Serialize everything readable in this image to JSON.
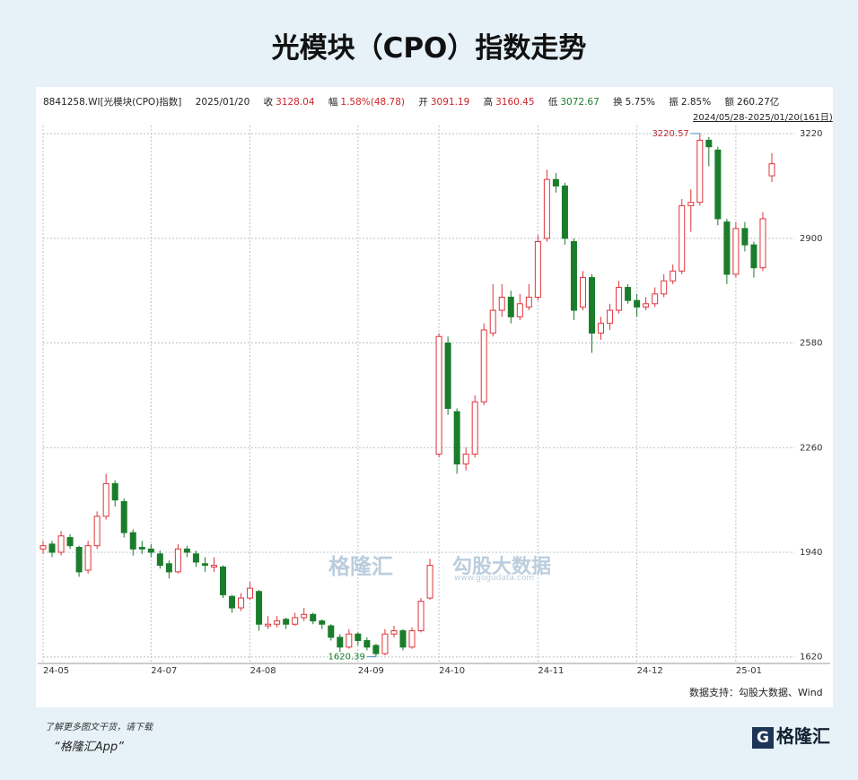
{
  "header": {
    "title": "光模块（CPO）指数走势"
  },
  "info": {
    "code": "8841258.WI[光模块(CPO)指数]",
    "date": "2025/01/20",
    "close_label": "收",
    "change_label": "幅",
    "change": "1.58%(48.78)",
    "open_label": "开",
    "high_label": "高",
    "low_label": "低",
    "turnover_label": "换",
    "turnover": "5.75%",
    "amplitude_label": "振",
    "amplitude": "2.85%",
    "amount_label": "额",
    "amount": "260.27亿",
    "range": "2024/05/28-2025/01/20(161日)"
  },
  "chart_data": {
    "type": "candlestick",
    "up_color": "#e0343a",
    "down_color": "#1a7d2c",
    "grid": true,
    "ylim": [
      1600,
      3245
    ],
    "yticks": [
      1620,
      1940,
      2260,
      2580,
      2900,
      3220
    ],
    "categories": [
      "24-05",
      null,
      null,
      null,
      null,
      null,
      null,
      null,
      null,
      null,
      null,
      null,
      "24-07",
      null,
      null,
      null,
      null,
      null,
      null,
      null,
      null,
      null,
      null,
      "24-08",
      null,
      null,
      null,
      null,
      null,
      null,
      null,
      null,
      null,
      null,
      null,
      "24-09",
      null,
      null,
      null,
      null,
      null,
      null,
      null,
      null,
      "24-10",
      null,
      null,
      null,
      null,
      null,
      null,
      null,
      null,
      null,
      null,
      "24-11",
      null,
      null,
      null,
      null,
      null,
      null,
      null,
      null,
      null,
      null,
      "24-12",
      null,
      null,
      null,
      null,
      null,
      null,
      null,
      null,
      null,
      null,
      "25-01",
      null,
      null,
      null,
      null
    ],
    "candles": [
      [
        1950,
        1975,
        1935,
        1960
      ],
      [
        1965,
        1975,
        1925,
        1940
      ],
      [
        1940,
        2005,
        1930,
        1990
      ],
      [
        1985,
        1995,
        1950,
        1960
      ],
      [
        1955,
        1960,
        1865,
        1880
      ],
      [
        1885,
        1975,
        1875,
        1960
      ],
      [
        1960,
        2065,
        1950,
        2050
      ],
      [
        2050,
        2180,
        2040,
        2150
      ],
      [
        2150,
        2160,
        2080,
        2100
      ],
      [
        2095,
        2105,
        1985,
        2000
      ],
      [
        2000,
        2010,
        1930,
        1950
      ],
      [
        1955,
        1975,
        1935,
        1950
      ],
      [
        1950,
        1965,
        1925,
        1940
      ],
      [
        1935,
        1945,
        1890,
        1900
      ],
      [
        1905,
        1915,
        1860,
        1880
      ],
      [
        1880,
        1965,
        1875,
        1950
      ],
      [
        1950,
        1960,
        1925,
        1940
      ],
      [
        1935,
        1945,
        1895,
        1910
      ],
      [
        1905,
        1925,
        1880,
        1900
      ],
      [
        1895,
        1925,
        1880,
        1900
      ],
      [
        1895,
        1900,
        1800,
        1810
      ],
      [
        1805,
        1810,
        1755,
        1770
      ],
      [
        1770,
        1815,
        1760,
        1800
      ],
      [
        1800,
        1850,
        1795,
        1830
      ],
      [
        1820,
        1825,
        1700,
        1720
      ],
      [
        1715,
        1745,
        1705,
        1720
      ],
      [
        1720,
        1745,
        1710,
        1730
      ],
      [
        1735,
        1740,
        1705,
        1720
      ],
      [
        1720,
        1755,
        1715,
        1740
      ],
      [
        1740,
        1770,
        1730,
        1750
      ],
      [
        1750,
        1755,
        1720,
        1730
      ],
      [
        1730,
        1735,
        1705,
        1720
      ],
      [
        1715,
        1720,
        1670,
        1680
      ],
      [
        1680,
        1690,
        1635,
        1650
      ],
      [
        1650,
        1705,
        1645,
        1690
      ],
      [
        1690,
        1695,
        1655,
        1670
      ],
      [
        1670,
        1680,
        1640,
        1650
      ],
      [
        1655,
        1660,
        1620.39,
        1630
      ],
      [
        1630,
        1705,
        1625,
        1690
      ],
      [
        1690,
        1715,
        1680,
        1700
      ],
      [
        1700,
        1705,
        1640,
        1650
      ],
      [
        1650,
        1710,
        1645,
        1700
      ],
      [
        1700,
        1800,
        1695,
        1790
      ],
      [
        1800,
        1920,
        1795,
        1900
      ],
      [
        2240,
        2610,
        2230,
        2600
      ],
      [
        2580,
        2600,
        2360,
        2380
      ],
      [
        2370,
        2380,
        2180,
        2210
      ],
      [
        2210,
        2260,
        2190,
        2240
      ],
      [
        2240,
        2420,
        2230,
        2400
      ],
      [
        2400,
        2640,
        2390,
        2620
      ],
      [
        2610,
        2760,
        2600,
        2680
      ],
      [
        2680,
        2760,
        2660,
        2720
      ],
      [
        2720,
        2740,
        2640,
        2660
      ],
      [
        2660,
        2730,
        2650,
        2700
      ],
      [
        2690,
        2760,
        2680,
        2720
      ],
      [
        2720,
        2910,
        2710,
        2890
      ],
      [
        2900,
        3110,
        2890,
        3080
      ],
      [
        3080,
        3100,
        3040,
        3060
      ],
      [
        3060,
        3070,
        2880,
        2900
      ],
      [
        2890,
        2900,
        2650,
        2680
      ],
      [
        2690,
        2800,
        2680,
        2780
      ],
      [
        2780,
        2790,
        2550,
        2610
      ],
      [
        2610,
        2660,
        2590,
        2640
      ],
      [
        2640,
        2700,
        2620,
        2680
      ],
      [
        2680,
        2770,
        2670,
        2750
      ],
      [
        2750,
        2760,
        2700,
        2710
      ],
      [
        2710,
        2730,
        2660,
        2690
      ],
      [
        2690,
        2720,
        2680,
        2700
      ],
      [
        2700,
        2750,
        2690,
        2730
      ],
      [
        2730,
        2790,
        2720,
        2770
      ],
      [
        2770,
        2820,
        2760,
        2800
      ],
      [
        2800,
        3020,
        2790,
        3000
      ],
      [
        3000,
        3050,
        2920,
        3010
      ],
      [
        3010,
        3220.57,
        3000,
        3200
      ],
      [
        3200,
        3210,
        3120,
        3180
      ],
      [
        3170,
        3180,
        2940,
        2960
      ],
      [
        2950,
        2960,
        2760,
        2790
      ],
      [
        2790,
        2950,
        2780,
        2930
      ],
      [
        2930,
        2950,
        2860,
        2880
      ],
      [
        2880,
        2890,
        2780,
        2810
      ],
      [
        2810,
        2980,
        2800,
        2960
      ],
      [
        3091.19,
        3160.45,
        3072.67,
        3128.04
      ]
    ]
  },
  "footer": {
    "source": "数据支持：勾股大数据、Wind",
    "promo": "了解更多图文干货，请下载",
    "app": "“格隆汇App”",
    "logo": "格隆汇"
  },
  "watermark": {
    "brand": "格隆汇",
    "site_name": "勾股大数据",
    "url": "www.gogudata.com"
  }
}
